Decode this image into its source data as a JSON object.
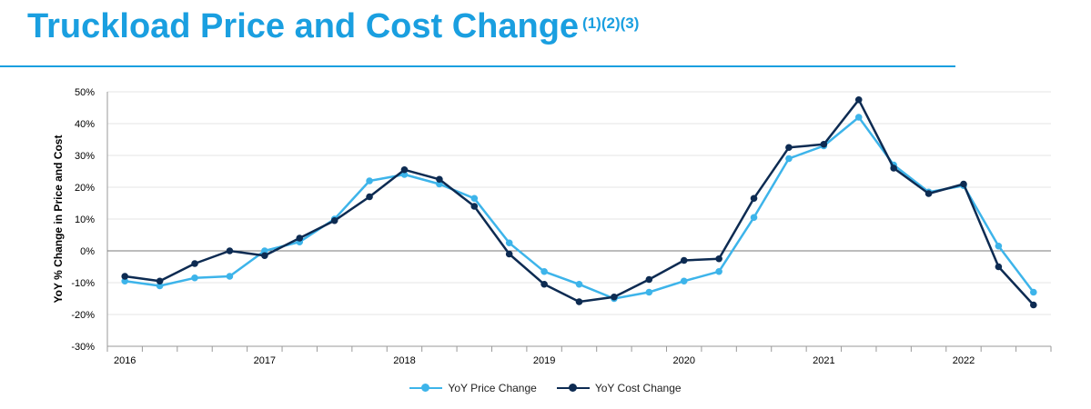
{
  "header": {
    "title": "Truckload Price and Cost Change",
    "superscript": "(1)(2)(3)"
  },
  "colors": {
    "accent": "#1a9fe0",
    "price": "#3db4ea",
    "cost": "#0d2b52"
  },
  "chart_data": {
    "type": "line",
    "ylabel": "YoY % Change in Price and Cost",
    "xlabel": "",
    "ylim": [
      -30,
      50
    ],
    "yticks": [
      -30,
      -20,
      -10,
      0,
      10,
      20,
      30,
      40,
      50
    ],
    "ytick_labels": [
      "-30%",
      "-20%",
      "-10%",
      "0%",
      "10%",
      "20%",
      "30%",
      "40%",
      "50%"
    ],
    "x_labels": [
      "2016",
      "2017",
      "2018",
      "2019",
      "2020",
      "2021",
      "2022"
    ],
    "x_label_index": [
      0,
      4,
      8,
      12,
      16,
      20,
      24
    ],
    "x_points": 27,
    "grid": "horizontal",
    "legend_position": "bottom",
    "series": [
      {
        "name": "YoY Price Change",
        "values": [
          -9.5,
          -11,
          -8.5,
          -8,
          0,
          2.8,
          10,
          22,
          24,
          21,
          16.5,
          2.5,
          -6.5,
          -10.5,
          -15,
          -13,
          -9.5,
          -6.5,
          10.5,
          29,
          33,
          42,
          27,
          18.5,
          20.5,
          1.5,
          -13
        ]
      },
      {
        "name": "YoY Cost Change",
        "values": [
          -8,
          -9.5,
          -4,
          0,
          -1.5,
          4,
          9.5,
          17,
          25.5,
          22.5,
          14,
          -1,
          -10.5,
          -16,
          -14.5,
          -9,
          -3,
          -2.5,
          16.5,
          32.5,
          33.5,
          47.5,
          26,
          18,
          21,
          -5,
          -17
        ]
      }
    ]
  }
}
